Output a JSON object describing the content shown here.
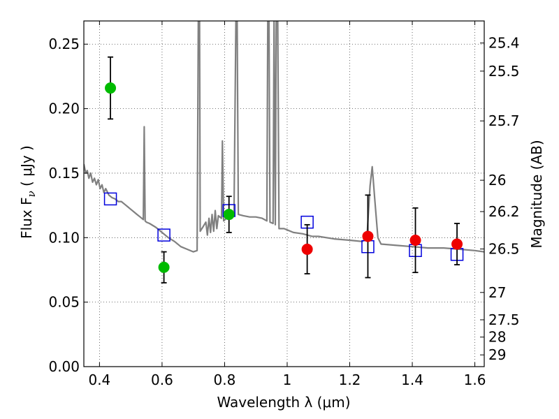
{
  "chart_data": {
    "type": "scatter",
    "xlabel": "Wavelength  λ (μm)",
    "ylabel_left": "Flux  F",
    "ylabel_left_sub": "ν",
    "ylabel_left_unit": "  ( μJy )",
    "ylabel_right": "Magnitude (AB)",
    "xlim": [
      0.35,
      1.63
    ],
    "ylim": [
      0.0,
      0.268
    ],
    "grid": true,
    "x_ticks": [
      {
        "value": 0.4,
        "label": "0.4"
      },
      {
        "value": 0.6,
        "label": "0.6"
      },
      {
        "value": 0.8,
        "label": "0.8"
      },
      {
        "value": 1.0,
        "label": "1"
      },
      {
        "value": 1.2,
        "label": "1.2"
      },
      {
        "value": 1.4,
        "label": "1.4"
      },
      {
        "value": 1.6,
        "label": "1.6"
      }
    ],
    "y_ticks": [
      {
        "value": 0.0,
        "label": "0.00"
      },
      {
        "value": 0.05,
        "label": "0.05"
      },
      {
        "value": 0.1,
        "label": "0.10"
      },
      {
        "value": 0.15,
        "label": "0.15"
      },
      {
        "value": 0.2,
        "label": "0.20"
      },
      {
        "value": 0.25,
        "label": "0.25"
      }
    ],
    "right_ticks": [
      {
        "flux": 0.2509,
        "label": "25.4"
      },
      {
        "flux": 0.2291,
        "label": "25.5"
      },
      {
        "flux": 0.1905,
        "label": "25.7"
      },
      {
        "flux": 0.1445,
        "label": "26"
      },
      {
        "flux": 0.1202,
        "label": "26.2"
      },
      {
        "flux": 0.0912,
        "label": "26.5"
      },
      {
        "flux": 0.0575,
        "label": "27"
      },
      {
        "flux": 0.0363,
        "label": "27.5"
      },
      {
        "flux": 0.0229,
        "label": "28"
      },
      {
        "flux": 0.0091,
        "label": "29"
      }
    ],
    "series": [
      {
        "marker": "circle",
        "color": "#00bb00",
        "points": [
          {
            "x": 0.435,
            "y": 0.216,
            "yerr": 0.024
          },
          {
            "x": 0.606,
            "y": 0.077,
            "yerr": 0.012
          },
          {
            "x": 0.814,
            "y": 0.118,
            "yerr": 0.014
          }
        ]
      },
      {
        "marker": "circle",
        "color": "#ee0000",
        "points": [
          {
            "x": 1.064,
            "y": 0.091,
            "yerr": 0.019
          },
          {
            "x": 1.258,
            "y": 0.101,
            "yerr": 0.032
          },
          {
            "x": 1.41,
            "y": 0.098,
            "yerr": 0.025
          },
          {
            "x": 1.543,
            "y": 0.095,
            "yerr": 0.016
          }
        ]
      },
      {
        "marker": "open-square",
        "color": "#0000dd",
        "points": [
          {
            "x": 0.435,
            "y": 0.13
          },
          {
            "x": 0.606,
            "y": 0.102
          },
          {
            "x": 0.814,
            "y": 0.121
          },
          {
            "x": 1.064,
            "y": 0.112
          },
          {
            "x": 1.258,
            "y": 0.093
          },
          {
            "x": 1.41,
            "y": 0.09
          },
          {
            "x": 1.543,
            "y": 0.087
          }
        ]
      },
      {
        "marker": "line",
        "color": "#808080",
        "points": [
          [
            0.35,
            0.157
          ],
          [
            0.356,
            0.15
          ],
          [
            0.361,
            0.152
          ],
          [
            0.366,
            0.146
          ],
          [
            0.372,
            0.15
          ],
          [
            0.378,
            0.143
          ],
          [
            0.384,
            0.146
          ],
          [
            0.39,
            0.141
          ],
          [
            0.396,
            0.145
          ],
          [
            0.402,
            0.138
          ],
          [
            0.408,
            0.141
          ],
          [
            0.414,
            0.135
          ],
          [
            0.42,
            0.138
          ],
          [
            0.43,
            0.133
          ],
          [
            0.44,
            0.131
          ],
          [
            0.45,
            0.13
          ],
          [
            0.46,
            0.128
          ],
          [
            0.47,
            0.128
          ],
          [
            0.48,
            0.126
          ],
          [
            0.49,
            0.124
          ],
          [
            0.5,
            0.122
          ],
          [
            0.51,
            0.12
          ],
          [
            0.52,
            0.118
          ],
          [
            0.53,
            0.116
          ],
          [
            0.54,
            0.114
          ],
          [
            0.543,
            0.186
          ],
          [
            0.546,
            0.113
          ],
          [
            0.55,
            0.112
          ],
          [
            0.56,
            0.111
          ],
          [
            0.58,
            0.108
          ],
          [
            0.6,
            0.104
          ],
          [
            0.62,
            0.1
          ],
          [
            0.64,
            0.097
          ],
          [
            0.66,
            0.093
          ],
          [
            0.68,
            0.091
          ],
          [
            0.7,
            0.089
          ],
          [
            0.712,
            0.09
          ],
          [
            0.716,
            0.268
          ],
          [
            0.72,
            0.268
          ],
          [
            0.722,
            0.105
          ],
          [
            0.73,
            0.108
          ],
          [
            0.74,
            0.112
          ],
          [
            0.745,
            0.102
          ],
          [
            0.75,
            0.115
          ],
          [
            0.755,
            0.104
          ],
          [
            0.76,
            0.118
          ],
          [
            0.765,
            0.105
          ],
          [
            0.77,
            0.121
          ],
          [
            0.775,
            0.107
          ],
          [
            0.78,
            0.117
          ],
          [
            0.79,
            0.115
          ],
          [
            0.793,
            0.175
          ],
          [
            0.797,
            0.113
          ],
          [
            0.81,
            0.116
          ],
          [
            0.82,
            0.118
          ],
          [
            0.83,
            0.119
          ],
          [
            0.836,
            0.268
          ],
          [
            0.84,
            0.268
          ],
          [
            0.844,
            0.118
          ],
          [
            0.86,
            0.117
          ],
          [
            0.88,
            0.116
          ],
          [
            0.9,
            0.116
          ],
          [
            0.92,
            0.115
          ],
          [
            0.935,
            0.113
          ],
          [
            0.938,
            0.268
          ],
          [
            0.942,
            0.268
          ],
          [
            0.945,
            0.112
          ],
          [
            0.955,
            0.111
          ],
          [
            0.958,
            0.268
          ],
          [
            0.962,
            0.11
          ],
          [
            0.965,
            0.268
          ],
          [
            0.97,
            0.268
          ],
          [
            0.974,
            0.107
          ],
          [
            0.99,
            0.107
          ],
          [
            1.0,
            0.106
          ],
          [
            1.02,
            0.104
          ],
          [
            1.05,
            0.103
          ],
          [
            1.08,
            0.101
          ],
          [
            1.1,
            0.101
          ],
          [
            1.15,
            0.099
          ],
          [
            1.2,
            0.098
          ],
          [
            1.24,
            0.097
          ],
          [
            1.255,
            0.1
          ],
          [
            1.265,
            0.14
          ],
          [
            1.272,
            0.155
          ],
          [
            1.28,
            0.13
          ],
          [
            1.29,
            0.1
          ],
          [
            1.3,
            0.095
          ],
          [
            1.35,
            0.094
          ],
          [
            1.4,
            0.093
          ],
          [
            1.45,
            0.092
          ],
          [
            1.5,
            0.092
          ],
          [
            1.55,
            0.091
          ],
          [
            1.6,
            0.09
          ],
          [
            1.63,
            0.089
          ]
        ]
      }
    ]
  }
}
